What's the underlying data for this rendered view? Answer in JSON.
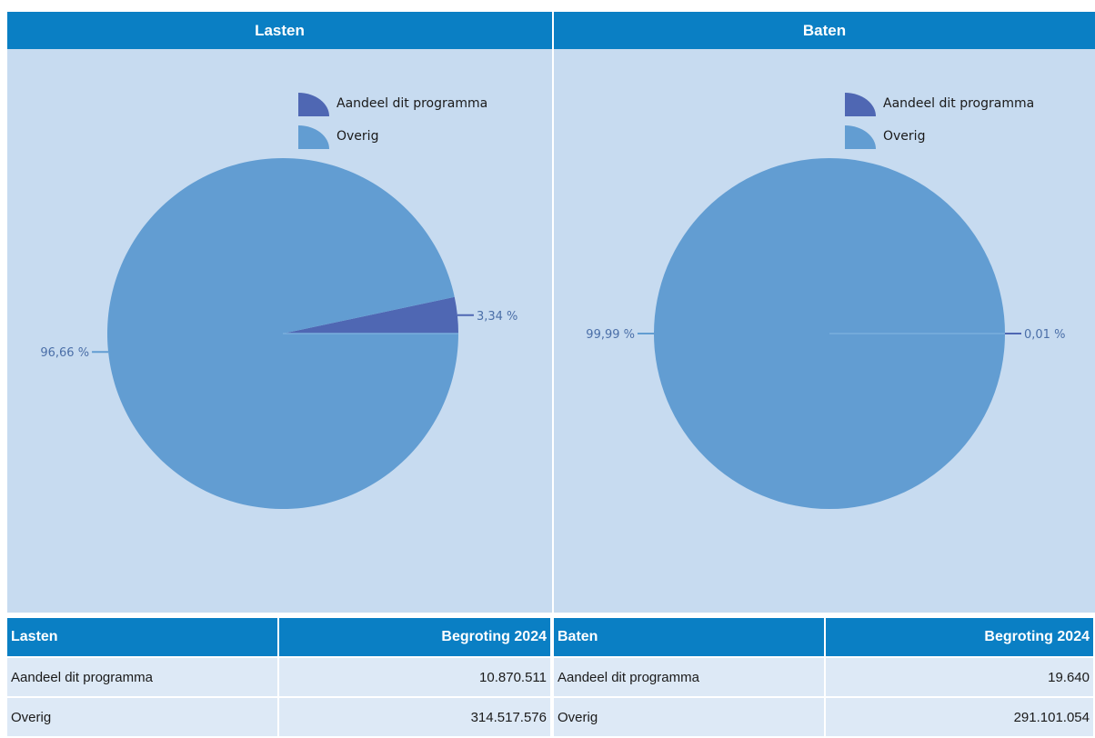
{
  "headers": {
    "left": "Lasten",
    "right": "Baten"
  },
  "colors": {
    "programma": "#4f67b3",
    "overig": "#629dd2",
    "panel_bg": "#c7dbf0",
    "header_bg": "#0a7fc4"
  },
  "chart_data": [
    {
      "type": "pie",
      "title": "Lasten",
      "legend": [
        "Aandeel dit programma",
        "Overig"
      ],
      "legend_position": "top-right",
      "categories": [
        "Aandeel dit programma",
        "Overig"
      ],
      "values": [
        10870511,
        314517576
      ],
      "labels": [
        "3,34 %",
        "96,66 %"
      ]
    },
    {
      "type": "pie",
      "title": "Baten",
      "legend": [
        "Aandeel dit programma",
        "Overig"
      ],
      "legend_position": "top-right",
      "categories": [
        "Aandeel dit programma",
        "Overig"
      ],
      "values": [
        19640,
        291101054
      ],
      "labels": [
        "0,01 %",
        "99,99 %"
      ]
    }
  ],
  "tables": [
    {
      "col1": "Lasten",
      "col2": "Begroting 2024",
      "rows": [
        {
          "label": "Aandeel dit programma",
          "value": "10.870.511"
        },
        {
          "label": "Overig",
          "value": "314.517.576"
        }
      ]
    },
    {
      "col1": "Baten",
      "col2": "Begroting 2024",
      "rows": [
        {
          "label": "Aandeel dit programma",
          "value": "19.640"
        },
        {
          "label": "Overig",
          "value": "291.101.054"
        }
      ]
    }
  ]
}
